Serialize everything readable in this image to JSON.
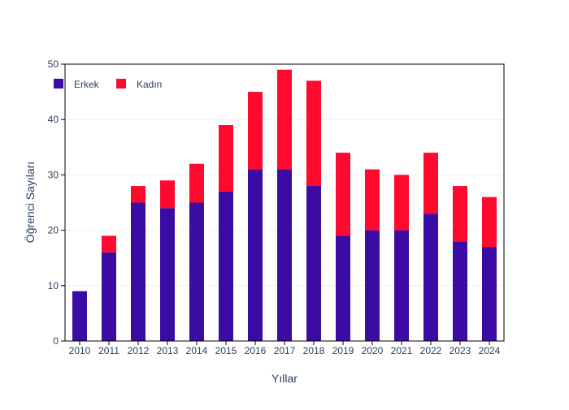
{
  "chart_data": {
    "type": "bar",
    "stacked": true,
    "categories": [
      "2010",
      "2011",
      "2012",
      "2013",
      "2014",
      "2015",
      "2016",
      "2017",
      "2018",
      "2019",
      "2020",
      "2021",
      "2022",
      "2023",
      "2024"
    ],
    "series": [
      {
        "name": "Erkek",
        "color": "#3a0ca3",
        "values": [
          9,
          16,
          25,
          24,
          25,
          27,
          31,
          31,
          28,
          19,
          20,
          20,
          23,
          18,
          17
        ]
      },
      {
        "name": "Kadın",
        "color": "#ff0a2e",
        "values": [
          0,
          3,
          3,
          5,
          7,
          12,
          14,
          18,
          19,
          15,
          11,
          10,
          11,
          10,
          9
        ]
      }
    ],
    "title": "",
    "xlabel": "Yıllar",
    "ylabel": "Öğrenci Sayıları",
    "ylim": [
      0,
      50
    ],
    "yticks": [
      0,
      10,
      20,
      30,
      40,
      50
    ],
    "grid": true,
    "legend": "top-left"
  }
}
